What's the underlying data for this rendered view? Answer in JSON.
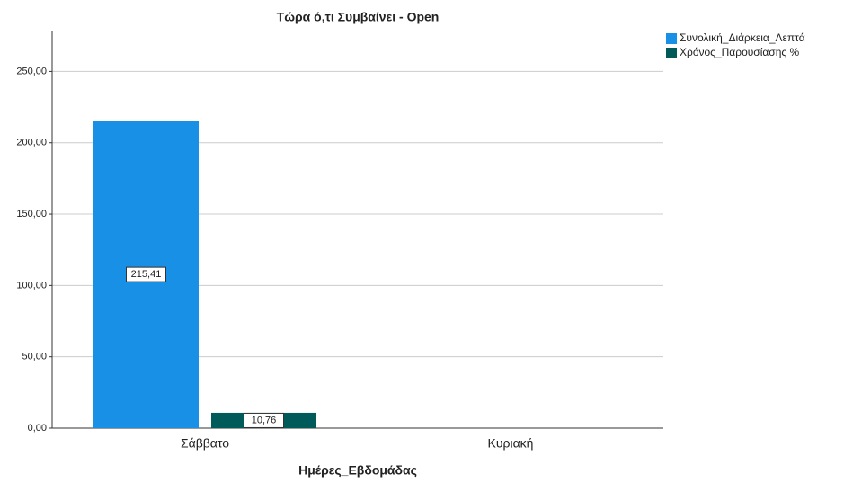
{
  "chart_data": {
    "type": "bar",
    "title": "Τώρα ό,τι Συμβαίνει - Open",
    "x_label": "Ημέρες_Εβδομάδας",
    "categories": [
      "Σάββατο",
      "Κυριακή"
    ],
    "series": [
      {
        "name": "Συνολική_Διάρκεια_Λεπτά",
        "color": "#1890e6",
        "values": [
          215.41,
          null
        ],
        "value_labels": [
          "215,41",
          null
        ]
      },
      {
        "name": "Χρόνος_Παρουσίασης %",
        "color": "#005a5a",
        "values": [
          10.76,
          null
        ],
        "value_labels": [
          "10,76",
          null
        ]
      }
    ],
    "ylim": [
      0,
      278
    ],
    "yticks": [
      {
        "value": 0,
        "label": "0,00"
      },
      {
        "value": 50,
        "label": "50,00"
      },
      {
        "value": 100,
        "label": "100,00"
      },
      {
        "value": 150,
        "label": "150,00"
      },
      {
        "value": 200,
        "label": "200,00"
      },
      {
        "value": 250,
        "label": "250,00"
      }
    ],
    "grid": true,
    "legend": "top-right"
  }
}
